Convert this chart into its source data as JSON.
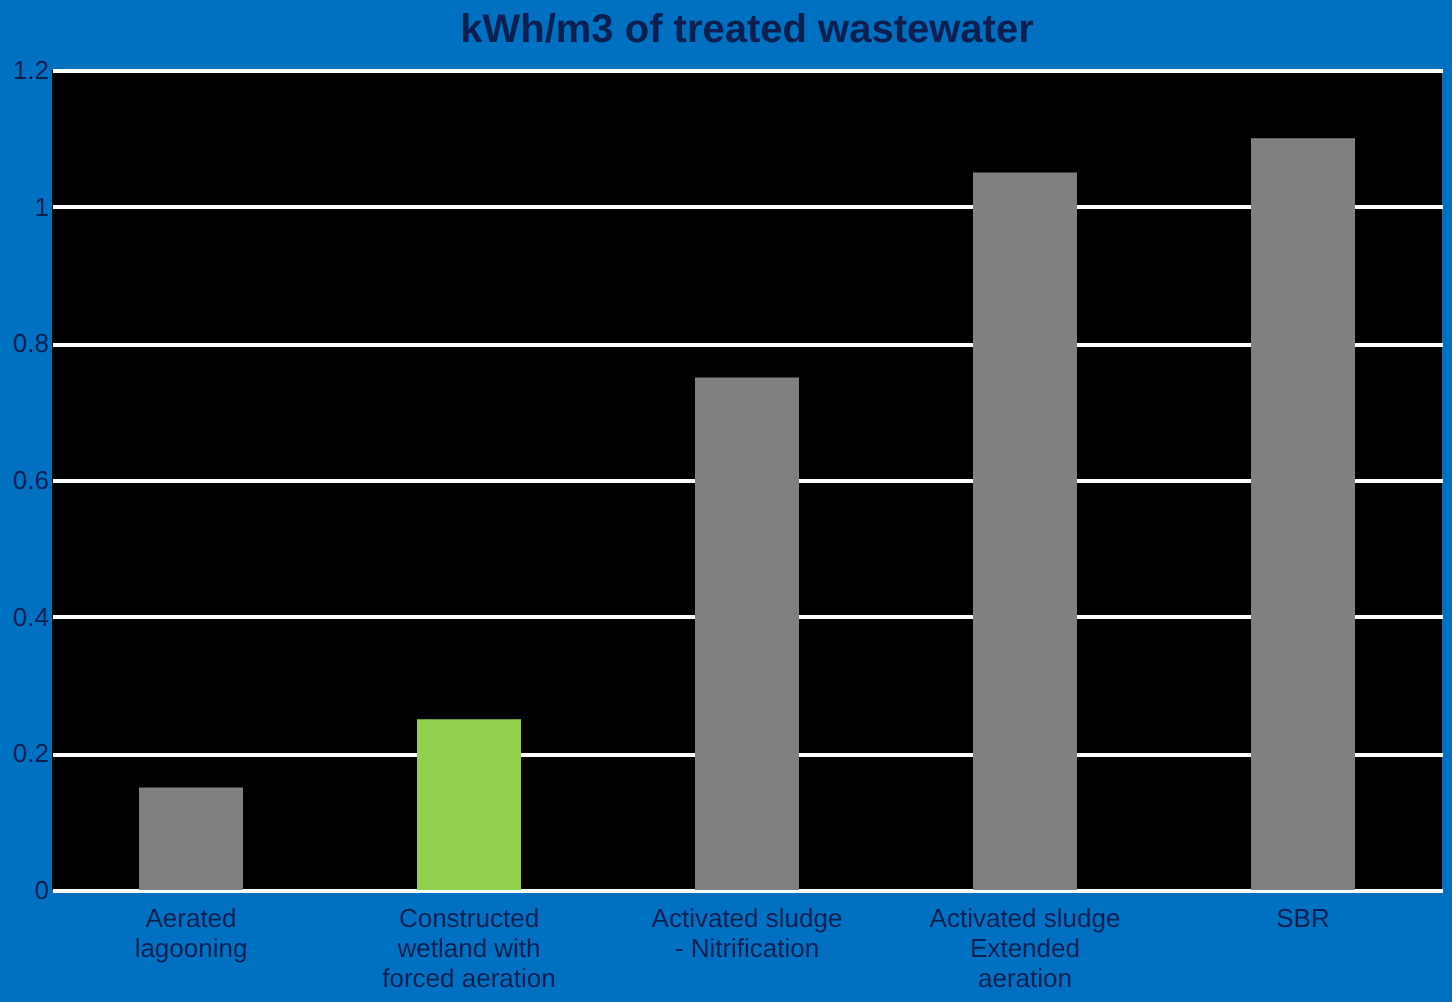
{
  "chart_data": {
    "type": "bar",
    "title": "kWh/m3 of treated wastewater",
    "categories": [
      "Aerated\nlagooning",
      "Constructed\nwetland with\nforced aeration",
      "Activated sludge\n- Nitrification",
      "Activated sludge\nExtended\naeration",
      "SBR"
    ],
    "values": [
      0.15,
      0.25,
      0.75,
      1.05,
      1.1
    ],
    "colors": [
      "#808080",
      "#92d050",
      "#808080",
      "#808080",
      "#808080"
    ],
    "ylim": [
      0,
      1.2
    ],
    "yticks": [
      0,
      0.2,
      0.4,
      0.6,
      0.8,
      1,
      1.2
    ],
    "grid": "y"
  }
}
